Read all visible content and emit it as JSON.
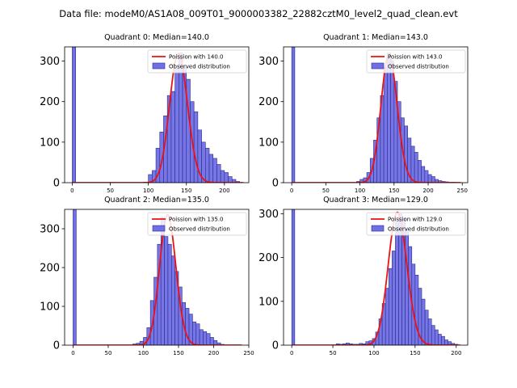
{
  "figure_title": "Data file: modeM0/AS1A08_009T01_9000003382_22882cztM0_level2_quad_clean.evt",
  "colors": {
    "bar_fill": "#6f6fe6",
    "bar_edge": "#2b2b8a",
    "poisson_line": "#ee1111"
  },
  "chart_data": [
    {
      "type": "bar",
      "title": "Quadrant 0: Median=140.0",
      "legend": [
        "Poission with 140.0",
        "Observed distribution"
      ],
      "legend_position": "top-right",
      "xlim": [
        -10,
        232
      ],
      "ylim": [
        0,
        335
      ],
      "xticks": [
        0,
        50,
        100,
        150,
        200
      ],
      "yticks": [
        0,
        100,
        200,
        300
      ],
      "bin_width": 5,
      "zero_bin_count": 335,
      "histogram": {
        "bin_start": [
          100,
          105,
          110,
          115,
          120,
          125,
          130,
          135,
          140,
          145,
          150,
          155,
          160,
          165,
          170,
          175,
          180,
          185,
          190,
          195,
          200,
          205,
          210,
          215
        ],
        "counts": [
          20,
          30,
          85,
          125,
          165,
          215,
          225,
          280,
          320,
          285,
          255,
          200,
          175,
          130,
          100,
          85,
          70,
          60,
          45,
          30,
          25,
          15,
          8,
          3
        ]
      },
      "poisson_mean": 140.0,
      "poisson_peak": 318,
      "poisson_range": [
        0,
        225
      ]
    },
    {
      "type": "bar",
      "title": "Quadrant 1: Median=143.0",
      "legend": [
        "Poission with 143.0",
        "Observed distribution"
      ],
      "legend_position": "top-right",
      "xlim": [
        -12,
        258
      ],
      "ylim": [
        0,
        335
      ],
      "xticks": [
        0,
        50,
        100,
        150,
        200,
        250
      ],
      "yticks": [
        0,
        100,
        200,
        300
      ],
      "bin_width": 5,
      "zero_bin_count": 335,
      "histogram": {
        "bin_start": [
          95,
          100,
          105,
          110,
          115,
          120,
          125,
          130,
          135,
          140,
          145,
          150,
          155,
          160,
          165,
          170,
          175,
          180,
          185,
          190,
          195,
          200,
          205,
          210,
          215,
          220,
          225,
          230,
          235
        ],
        "counts": [
          3,
          8,
          12,
          25,
          60,
          105,
          160,
          215,
          285,
          320,
          300,
          250,
          200,
          160,
          140,
          110,
          90,
          75,
          55,
          40,
          30,
          20,
          15,
          8,
          5,
          3,
          2,
          1,
          1
        ]
      },
      "poisson_mean": 143.0,
      "poisson_peak": 315,
      "poisson_range": [
        0,
        248
      ]
    },
    {
      "type": "bar",
      "title": "Quadrant 2: Median=135.0",
      "legend": [
        "Poission with 135.0",
        "Observed distribution"
      ],
      "legend_position": "top-right",
      "xlim": [
        -12,
        250
      ],
      "ylim": [
        0,
        350
      ],
      "xticks": [
        0,
        50,
        100,
        150,
        200,
        250
      ],
      "yticks": [
        0,
        100,
        200,
        300
      ],
      "bin_width": 5,
      "zero_bin_count": 350,
      "histogram": {
        "bin_start": [
          85,
          90,
          95,
          100,
          105,
          110,
          115,
          120,
          125,
          130,
          135,
          140,
          145,
          150,
          155,
          160,
          165,
          170,
          175,
          180,
          185,
          190,
          195,
          200,
          205,
          210
        ],
        "counts": [
          3,
          5,
          10,
          20,
          45,
          115,
          175,
          260,
          330,
          280,
          260,
          230,
          190,
          150,
          110,
          95,
          80,
          60,
          55,
          40,
          35,
          30,
          20,
          12,
          6,
          2
        ]
      },
      "poisson_mean": 135.0,
      "poisson_peak": 335,
      "poisson_range": [
        0,
        240
      ]
    },
    {
      "type": "bar",
      "title": "Quadrant 3: Median=129.0",
      "legend": [
        "Poission with 129.0",
        "Observed distribution"
      ],
      "legend_position": "top-right",
      "xlim": [
        -10,
        214
      ],
      "ylim": [
        0,
        310
      ],
      "xticks": [
        0,
        50,
        100,
        150,
        200
      ],
      "yticks": [
        0,
        100,
        200,
        300
      ],
      "bin_width": 4,
      "zero_bin_count": 310,
      "histogram": {
        "bin_start": [
          54,
          58,
          62,
          66,
          70,
          74,
          78,
          82,
          86,
          90,
          94,
          98,
          102,
          106,
          110,
          114,
          118,
          122,
          126,
          130,
          134,
          138,
          142,
          146,
          150,
          154,
          158,
          162,
          166,
          170,
          174,
          178,
          182,
          186,
          190,
          194,
          198
        ],
        "counts": [
          3,
          2,
          3,
          5,
          3,
          2,
          2,
          4,
          3,
          8,
          10,
          15,
          30,
          60,
          95,
          130,
          175,
          215,
          280,
          300,
          290,
          265,
          225,
          185,
          160,
          130,
          105,
          80,
          60,
          45,
          35,
          25,
          20,
          12,
          8,
          4,
          2
        ]
      },
      "poisson_mean": 129.0,
      "poisson_peak": 303,
      "poisson_range": [
        0,
        205
      ]
    }
  ]
}
